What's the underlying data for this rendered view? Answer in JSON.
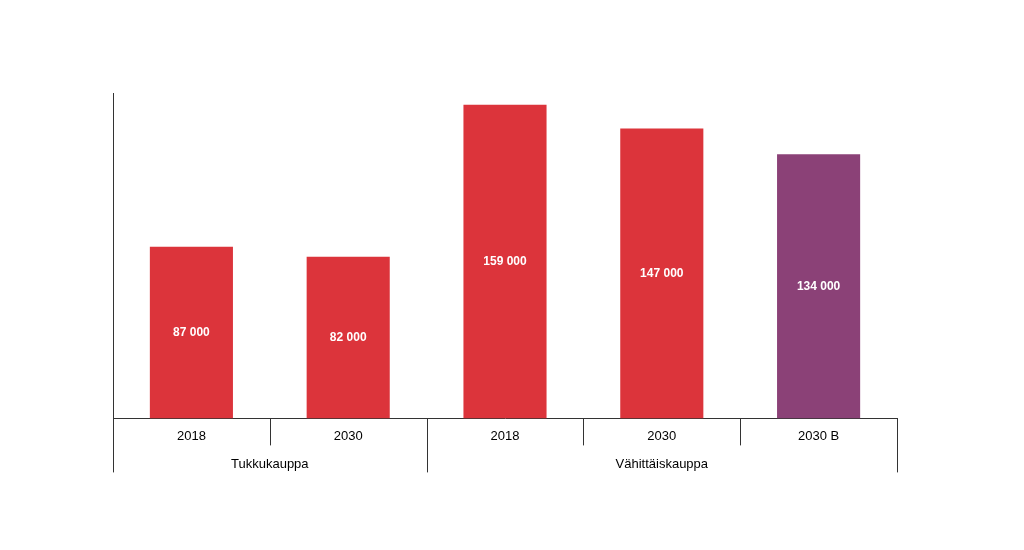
{
  "chart_data": {
    "type": "bar",
    "categories": [
      "2018",
      "2030",
      "2018",
      "2030",
      "2030 B"
    ],
    "groups": [
      "Tukkukauppa",
      "Tukkukauppa",
      "Vähittäiskauppa",
      "Vähittäiskauppa",
      "Vähittäiskauppa"
    ],
    "values": [
      87000,
      82000,
      159000,
      147000,
      134000
    ],
    "value_labels": [
      "87 000",
      "82 000",
      "159 000",
      "147 000",
      "134 000"
    ],
    "colors": [
      "#dc343b",
      "#dc343b",
      "#dc343b",
      "#dc343b",
      "#8b4177"
    ],
    "ylim": [
      0,
      165000
    ],
    "grid": false,
    "data_labels": true,
    "tick_labels": "x"
  }
}
